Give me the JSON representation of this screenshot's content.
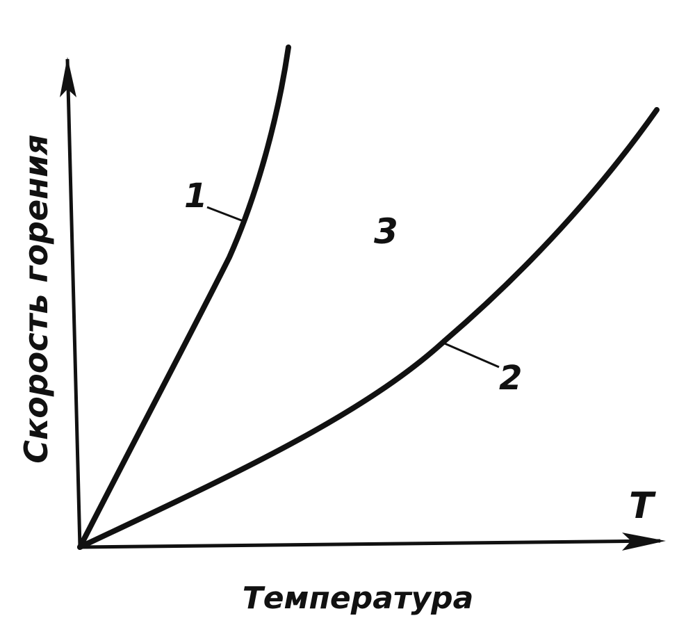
{
  "diagram": {
    "y_axis_label": "Скорость горения",
    "x_axis_label": "Температура",
    "x_axis_symbol": "T",
    "curves": [
      {
        "label": "1"
      },
      {
        "label": "2"
      }
    ],
    "region_label": "3",
    "line_color": "#111111",
    "background_color": "#ffffff"
  }
}
